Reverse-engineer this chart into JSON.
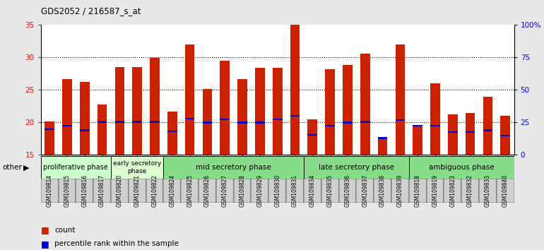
{
  "title": "GDS2052 / 216587_s_at",
  "samples": [
    "GSM109814",
    "GSM109815",
    "GSM109816",
    "GSM109817",
    "GSM109820",
    "GSM109821",
    "GSM109822",
    "GSM109824",
    "GSM109825",
    "GSM109826",
    "GSM109827",
    "GSM109828",
    "GSM109829",
    "GSM109830",
    "GSM109831",
    "GSM109834",
    "GSM109835",
    "GSM109836",
    "GSM109837",
    "GSM109838",
    "GSM109839",
    "GSM109818",
    "GSM109819",
    "GSM109823",
    "GSM109832",
    "GSM109833",
    "GSM109840"
  ],
  "count_values": [
    20.2,
    26.7,
    26.2,
    22.8,
    28.5,
    28.5,
    29.9,
    21.7,
    32.0,
    25.2,
    29.5,
    26.7,
    28.4,
    28.4,
    35.0,
    20.5,
    28.2,
    28.9,
    30.6,
    17.6,
    32.0,
    19.5,
    26.0,
    21.2,
    21.5,
    24.0,
    21.0
  ],
  "percentile_values": [
    19.0,
    19.5,
    18.8,
    20.1,
    20.1,
    20.1,
    20.1,
    18.6,
    20.6,
    20.0,
    20.5,
    20.0,
    20.0,
    20.5,
    21.0,
    18.1,
    19.5,
    20.0,
    20.1,
    17.6,
    20.4,
    19.5,
    19.5,
    18.5,
    18.5,
    18.8,
    18.0
  ],
  "phases": [
    {
      "label": "proliferative phase",
      "start": 0,
      "end": 4,
      "color": "#ccffcc"
    },
    {
      "label": "early secretory\nphase",
      "start": 4,
      "end": 7,
      "color": "#ddffd0"
    },
    {
      "label": "mid secretory phase",
      "start": 7,
      "end": 15,
      "color": "#88dd88"
    },
    {
      "label": "late secretory phase",
      "start": 15,
      "end": 21,
      "color": "#88dd88"
    },
    {
      "label": "ambiguous phase",
      "start": 21,
      "end": 27,
      "color": "#88dd88"
    }
  ],
  "ylim_left": [
    15,
    35
  ],
  "ylim_right": [
    0,
    100
  ],
  "yticks_left": [
    15,
    20,
    25,
    30,
    35
  ],
  "yticks_right": [
    0,
    25,
    50,
    75,
    100
  ],
  "bar_color": "#cc2200",
  "percentile_color": "#0000cc",
  "bar_width": 0.55,
  "background_color": "#e8e8e8",
  "plot_bg": "#ffffff",
  "grid_yticks": [
    20,
    25,
    30
  ]
}
